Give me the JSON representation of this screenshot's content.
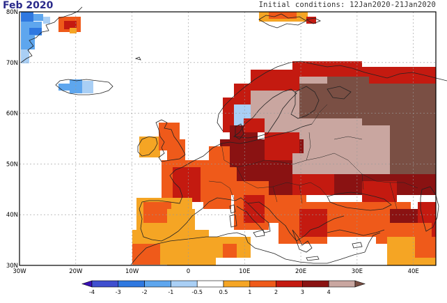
{
  "title": "Feb 2020",
  "subtitle": "Initial conditions: 12Jan2020-21Jan2020",
  "lat_labels": [
    "80N",
    "70N",
    "60N",
    "50N",
    "40N",
    "30N"
  ],
  "lon_labels": [
    "30W",
    "20W",
    "10W",
    "0",
    "10E",
    "20E",
    "30E",
    "40E"
  ],
  "colorbar": {
    "tick_labels": [
      "-4",
      "-3",
      "-2",
      "-1",
      "-0.5",
      "0.5",
      "1",
      "2",
      "3",
      "4"
    ],
    "colors": [
      "#3a10b8",
      "#3f4fcf",
      "#2f78e0",
      "#5ea6ee",
      "#a9cff5",
      "#ffffff",
      "#f5a524",
      "#ef5a1a",
      "#c41a10",
      "#8a1212",
      "#c9a6a0",
      "#7a4f44"
    ]
  },
  "map_colors": {
    "land": "#ffffff",
    "coast": "#222222",
    "grid": "#999999"
  }
}
